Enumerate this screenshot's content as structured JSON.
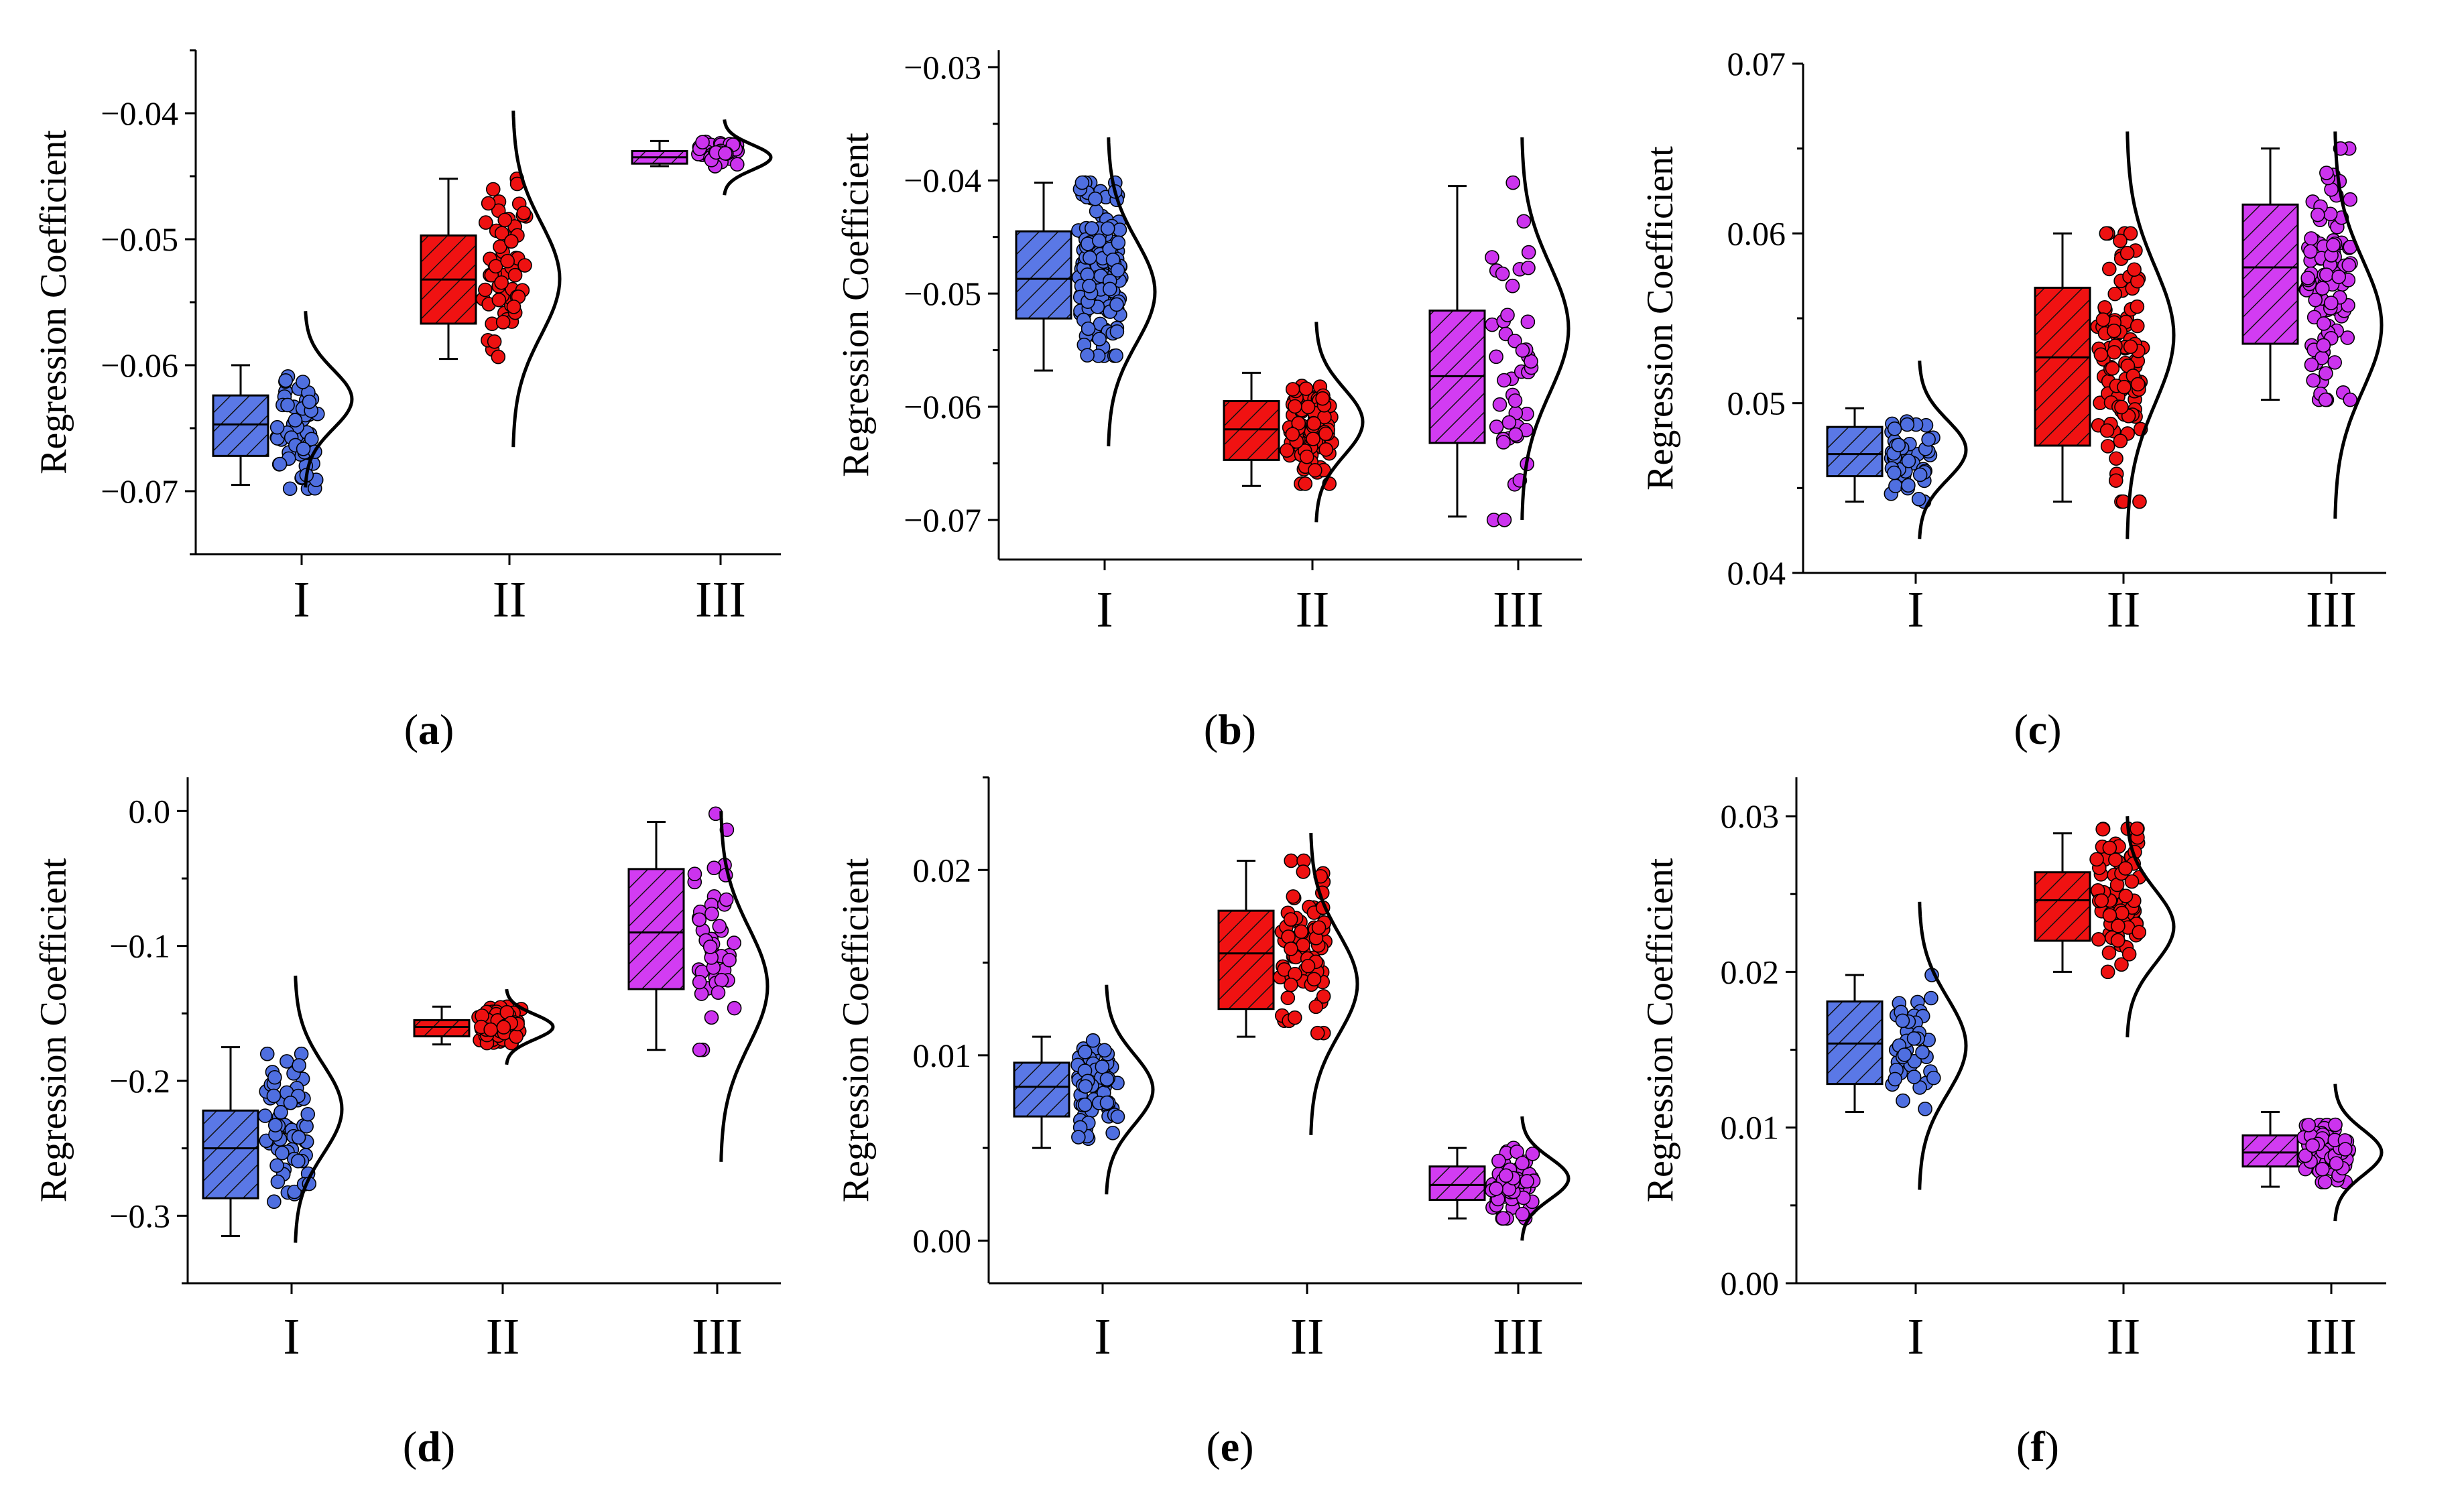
{
  "chart_data": [
    {
      "panel": "a",
      "type": "box",
      "ylabel": "Regression Coefficient",
      "ylim": [
        -0.075,
        -0.035
      ],
      "yticks": [
        -0.07,
        -0.06,
        -0.05,
        -0.04
      ],
      "ytick_labels": [
        "−0.07",
        "−0.06",
        "−0.05",
        "−0.04"
      ],
      "categories": [
        "I",
        "II",
        "III"
      ],
      "groups": [
        {
          "name": "I",
          "color": "#4f6fe0",
          "min": -0.0695,
          "q1": -0.0672,
          "median": -0.0647,
          "q3": -0.0624,
          "max": -0.06,
          "n": 60,
          "pmin": -0.0698,
          "pmax": -0.06,
          "curve": [
            -0.0697,
            -0.0557
          ]
        },
        {
          "name": "II",
          "color": "#ee1111",
          "min": -0.0595,
          "q1": -0.0567,
          "median": -0.0532,
          "q3": -0.0497,
          "max": -0.0452,
          "n": 60,
          "pmin": -0.0597,
          "pmax": -0.0452,
          "curve": [
            -0.0665,
            -0.0398
          ]
        },
        {
          "name": "III",
          "color": "#cc33ee",
          "min": -0.0442,
          "q1": -0.044,
          "median": -0.0435,
          "q3": -0.043,
          "max": -0.0422,
          "n": 50,
          "pmin": -0.0442,
          "pmax": -0.042,
          "curve": [
            -0.0465,
            -0.0405
          ]
        }
      ]
    },
    {
      "panel": "b",
      "type": "box",
      "ylabel": "Regression Coefficient",
      "ylim": [
        -0.0735,
        -0.0285
      ],
      "yticks": [
        -0.07,
        -0.06,
        -0.05,
        -0.04,
        -0.03
      ],
      "ytick_labels": [
        "−0.07",
        "−0.06",
        "−0.05",
        "−0.04",
        "−0.03"
      ],
      "categories": [
        "I",
        "II",
        "III"
      ],
      "groups": [
        {
          "name": "I",
          "color": "#4f6fe0",
          "min": -0.0568,
          "q1": -0.0522,
          "median": -0.0487,
          "q3": -0.0445,
          "max": -0.0402,
          "n": 160,
          "pmin": -0.0555,
          "pmax": -0.0402,
          "curve": [
            -0.0635,
            -0.0362
          ]
        },
        {
          "name": "II",
          "color": "#ee1111",
          "min": -0.067,
          "q1": -0.0647,
          "median": -0.062,
          "q3": -0.0595,
          "max": -0.057,
          "n": 100,
          "pmin": -0.0668,
          "pmax": -0.0572,
          "curve": [
            -0.0702,
            -0.0525
          ]
        },
        {
          "name": "III",
          "color": "#cc33ee",
          "min": -0.0697,
          "q1": -0.0632,
          "median": -0.0573,
          "q3": -0.0515,
          "max": -0.0405,
          "n": 45,
          "pmin": -0.07,
          "pmax": -0.0402,
          "curve": [
            -0.07,
            -0.0362
          ]
        }
      ]
    },
    {
      "panel": "c",
      "type": "box",
      "ylabel": "Regression Coefficient",
      "ylim": [
        0.04,
        0.07
      ],
      "yticks": [
        0.04,
        0.05,
        0.06,
        0.07
      ],
      "ytick_labels": [
        "0.04",
        "0.05",
        "0.06",
        "0.07"
      ],
      "categories": [
        "I",
        "II",
        "III"
      ],
      "groups": [
        {
          "name": "I",
          "color": "#4f6fe0",
          "min": 0.0442,
          "q1": 0.0457,
          "median": 0.047,
          "q3": 0.0486,
          "max": 0.0497,
          "n": 50,
          "pmin": 0.0442,
          "pmax": 0.0497,
          "curve": [
            0.042,
            0.0525
          ]
        },
        {
          "name": "II",
          "color": "#ee1111",
          "min": 0.0442,
          "q1": 0.0475,
          "median": 0.0527,
          "q3": 0.0568,
          "max": 0.06,
          "n": 100,
          "pmin": 0.0442,
          "pmax": 0.06,
          "curve": [
            0.042,
            0.066
          ]
        },
        {
          "name": "III",
          "color": "#cc33ee",
          "min": 0.0502,
          "q1": 0.0535,
          "median": 0.058,
          "q3": 0.0617,
          "max": 0.065,
          "n": 100,
          "pmin": 0.0502,
          "pmax": 0.065,
          "curve": [
            0.0432,
            0.066
          ]
        }
      ]
    },
    {
      "panel": "d",
      "type": "box",
      "ylabel": "Regression Coefficient",
      "ylim": [
        -0.35,
        0.025
      ],
      "yticks": [
        -0.3,
        -0.2,
        -0.1,
        0.0
      ],
      "ytick_labels": [
        "−0.3",
        "−0.2",
        "−0.1",
        "0.0"
      ],
      "categories": [
        "I",
        "II",
        "III"
      ],
      "groups": [
        {
          "name": "I",
          "color": "#4f6fe0",
          "min": -0.315,
          "q1": -0.287,
          "median": -0.25,
          "q3": -0.222,
          "max": -0.175,
          "n": 60,
          "pmin": -0.315,
          "pmax": -0.18,
          "curve": [
            -0.32,
            -0.122
          ]
        },
        {
          "name": "II",
          "color": "#ee1111",
          "min": -0.173,
          "q1": -0.167,
          "median": -0.16,
          "q3": -0.155,
          "max": -0.145,
          "n": 80,
          "pmin": -0.172,
          "pmax": -0.145,
          "curve": [
            -0.188,
            -0.132
          ]
        },
        {
          "name": "III",
          "color": "#cc33ee",
          "min": -0.177,
          "q1": -0.132,
          "median": -0.09,
          "q3": -0.043,
          "max": -0.008,
          "n": 45,
          "pmin": -0.177,
          "pmax": -0.002,
          "curve": [
            -0.26,
            0.0
          ]
        }
      ]
    },
    {
      "panel": "e",
      "type": "box",
      "ylabel": "Regression Coefficient",
      "ylim": [
        -0.0023,
        0.025
      ],
      "yticks": [
        0.0,
        0.01,
        0.02
      ],
      "ytick_labels": [
        "0.00",
        "0.01",
        "0.02"
      ],
      "categories": [
        "I",
        "II",
        "III"
      ],
      "groups": [
        {
          "name": "I",
          "color": "#4f6fe0",
          "min": 0.005,
          "q1": 0.0067,
          "median": 0.0083,
          "q3": 0.0096,
          "max": 0.011,
          "n": 60,
          "pmin": 0.0055,
          "pmax": 0.0108,
          "curve": [
            0.0025,
            0.0138
          ]
        },
        {
          "name": "II",
          "color": "#ee1111",
          "min": 0.011,
          "q1": 0.0125,
          "median": 0.0155,
          "q3": 0.0178,
          "max": 0.0205,
          "n": 80,
          "pmin": 0.0112,
          "pmax": 0.0205,
          "curve": [
            0.0057,
            0.022
          ]
        },
        {
          "name": "III",
          "color": "#cc33ee",
          "min": 0.0012,
          "q1": 0.0022,
          "median": 0.003,
          "q3": 0.004,
          "max": 0.005,
          "n": 60,
          "pmin": 0.0012,
          "pmax": 0.005,
          "curve": [
            0.0,
            0.0067
          ]
        }
      ]
    },
    {
      "panel": "f",
      "type": "box",
      "ylabel": "Regression Coefficient",
      "ylim": [
        0.0,
        0.0325
      ],
      "yticks": [
        0.0,
        0.01,
        0.02,
        0.03
      ],
      "ytick_labels": [
        "0.00",
        "0.01",
        "0.02",
        "0.03"
      ],
      "categories": [
        "I",
        "II",
        "III"
      ],
      "groups": [
        {
          "name": "I",
          "color": "#4f6fe0",
          "min": 0.011,
          "q1": 0.0128,
          "median": 0.0154,
          "q3": 0.0181,
          "max": 0.0198,
          "n": 40,
          "pmin": 0.0112,
          "pmax": 0.0198,
          "curve": [
            0.006,
            0.0245
          ]
        },
        {
          "name": "II",
          "color": "#ee1111",
          "min": 0.02,
          "q1": 0.022,
          "median": 0.0246,
          "q3": 0.0264,
          "max": 0.0289,
          "n": 80,
          "pmin": 0.02,
          "pmax": 0.0292,
          "curve": [
            0.0158,
            0.03
          ]
        },
        {
          "name": "III",
          "color": "#cc33ee",
          "min": 0.0062,
          "q1": 0.0075,
          "median": 0.0084,
          "q3": 0.0095,
          "max": 0.011,
          "n": 80,
          "pmin": 0.0065,
          "pmax": 0.0105,
          "curve": [
            0.004,
            0.0128
          ]
        }
      ]
    }
  ]
}
